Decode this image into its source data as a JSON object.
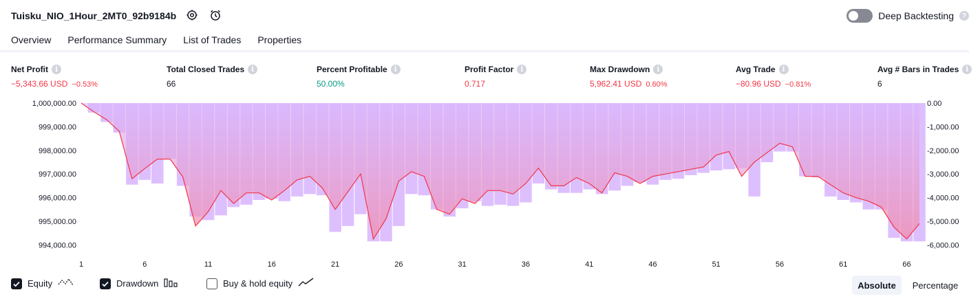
{
  "header": {
    "strategy_title": "Tuisku_NIO_1Hour_2MT0_92b9184b",
    "deep_backtesting_label": "Deep Backtesting",
    "deep_backtesting_enabled": false,
    "help_glyph": "?"
  },
  "tabs": [
    {
      "label": "Overview",
      "active": true
    },
    {
      "label": "Performance Summary",
      "active": false
    },
    {
      "label": "List of Trades",
      "active": false
    },
    {
      "label": "Properties",
      "active": false
    }
  ],
  "metrics": [
    {
      "label": "Net Profit",
      "value": "−5,343.66 USD",
      "sub": "−0.53%",
      "tone": "neg"
    },
    {
      "label": "Total Closed Trades",
      "value": "66",
      "sub": "",
      "tone": "plain"
    },
    {
      "label": "Percent Profitable",
      "value": "50.00%",
      "sub": "",
      "tone": "pos"
    },
    {
      "label": "Profit Factor",
      "value": "0.717",
      "sub": "",
      "tone": "neg"
    },
    {
      "label": "Max Drawdown",
      "value": "5,962.41 USD",
      "sub": "0.60%",
      "tone": "neg"
    },
    {
      "label": "Avg Trade",
      "value": "−80.96 USD",
      "sub": "−0.81%",
      "tone": "neg"
    },
    {
      "label": "Avg # Bars in Trades",
      "value": "6",
      "sub": "",
      "tone": "plain"
    }
  ],
  "info_glyph": "i",
  "chart_data": {
    "type": "line",
    "x_ticks": [
      "1",
      "6",
      "11",
      "16",
      "21",
      "26",
      "31",
      "36",
      "41",
      "46",
      "51",
      "56",
      "61",
      "66"
    ],
    "left_ticks": [
      "1,000,000.00",
      "999,000.00",
      "998,000.00",
      "997,000.00",
      "996,000.00",
      "995,000.00",
      "994,000.00"
    ],
    "right_ticks": [
      "0.00",
      "-1,000.00",
      "-2,000.00",
      "-3,000.00",
      "-4,000.00",
      "-5,000.00",
      "-6,000.00"
    ],
    "left_range": [
      993750,
      1000000
    ],
    "right_range": [
      -6250,
      0
    ],
    "x_range": [
      1,
      67
    ],
    "series": [
      {
        "name": "Equity",
        "color": "#f23645",
        "x": [
          1,
          2,
          3,
          4,
          5,
          6,
          7,
          8,
          9,
          10,
          11,
          12,
          13,
          14,
          15,
          16,
          17,
          18,
          19,
          20,
          21,
          22,
          23,
          24,
          25,
          26,
          27,
          28,
          29,
          30,
          31,
          32,
          33,
          34,
          35,
          36,
          37,
          38,
          39,
          40,
          41,
          42,
          43,
          44,
          45,
          46,
          47,
          48,
          49,
          50,
          51,
          52,
          53,
          54,
          55,
          56,
          57,
          58,
          59,
          60,
          61,
          62,
          63,
          64,
          65,
          66,
          67
        ],
        "values": [
          1000000,
          999630,
          999300,
          998800,
          996800,
          997230,
          997630,
          997630,
          996880,
          994800,
          995400,
          996300,
          995750,
          996200,
          996200,
          995900,
          996300,
          996750,
          996900,
          996400,
          995500,
          996250,
          997000,
          994250,
          995100,
          996700,
          997100,
          996900,
          995500,
          995300,
          995950,
          995750,
          996300,
          996300,
          996150,
          996600,
          997250,
          996500,
          996500,
          996850,
          996600,
          996200,
          997050,
          996900,
          996600,
          996900,
          997000,
          997100,
          997200,
          997300,
          997800,
          997950,
          996900,
          997500,
          997900,
          998300,
          998150,
          996900,
          996900,
          996550,
          996200,
          996000,
          995850,
          995600,
          994750,
          994250,
          994900
        ]
      },
      {
        "name": "Drawdown",
        "color": "#d8b4fe",
        "x": [
          1,
          2,
          3,
          4,
          5,
          6,
          7,
          8,
          9,
          10,
          11,
          12,
          13,
          14,
          15,
          16,
          17,
          18,
          19,
          20,
          21,
          22,
          23,
          24,
          25,
          26,
          27,
          28,
          29,
          30,
          31,
          32,
          33,
          34,
          35,
          36,
          37,
          38,
          39,
          40,
          41,
          42,
          43,
          44,
          45,
          46,
          47,
          48,
          49,
          50,
          51,
          52,
          53,
          54,
          55,
          56,
          57,
          58,
          59,
          60,
          61,
          62,
          63,
          64,
          65,
          66,
          67
        ],
        "values": [
          0,
          -400,
          -800,
          -1250,
          -3450,
          -3250,
          -3400,
          -2350,
          -3500,
          -4800,
          -4950,
          -4750,
          -4400,
          -4300,
          -4100,
          -4050,
          -4150,
          -3950,
          -3850,
          -3900,
          -5450,
          -5200,
          -4700,
          -5850,
          -5850,
          -5200,
          -3850,
          -3900,
          -4500,
          -4800,
          -4450,
          -4150,
          -4350,
          -4300,
          -4350,
          -4200,
          -3400,
          -3650,
          -3800,
          -3800,
          -3650,
          -3850,
          -3700,
          -3500,
          -3350,
          -3450,
          -3250,
          -3200,
          -3050,
          -2950,
          -2850,
          -2800,
          -2750,
          -3950,
          -2500,
          -2050,
          -2050,
          -3100,
          -3150,
          -3950,
          -4100,
          -4200,
          -4500,
          -4500,
          -5700,
          -5850,
          -5850
        ]
      },
      {
        "name": "Buy & hold equity",
        "color": "#131722",
        "x": [],
        "values": []
      }
    ]
  },
  "legend": [
    {
      "label": "Equity",
      "checked": true,
      "icon": "equity-line-icon"
    },
    {
      "label": "Drawdown",
      "checked": true,
      "icon": "drawdown-bars-icon"
    },
    {
      "label": "Buy & hold equity",
      "checked": false,
      "icon": "buy-hold-line-icon"
    }
  ],
  "mode_buttons": [
    {
      "label": "Absolute",
      "active": true
    },
    {
      "label": "Percentage",
      "active": false
    }
  ]
}
